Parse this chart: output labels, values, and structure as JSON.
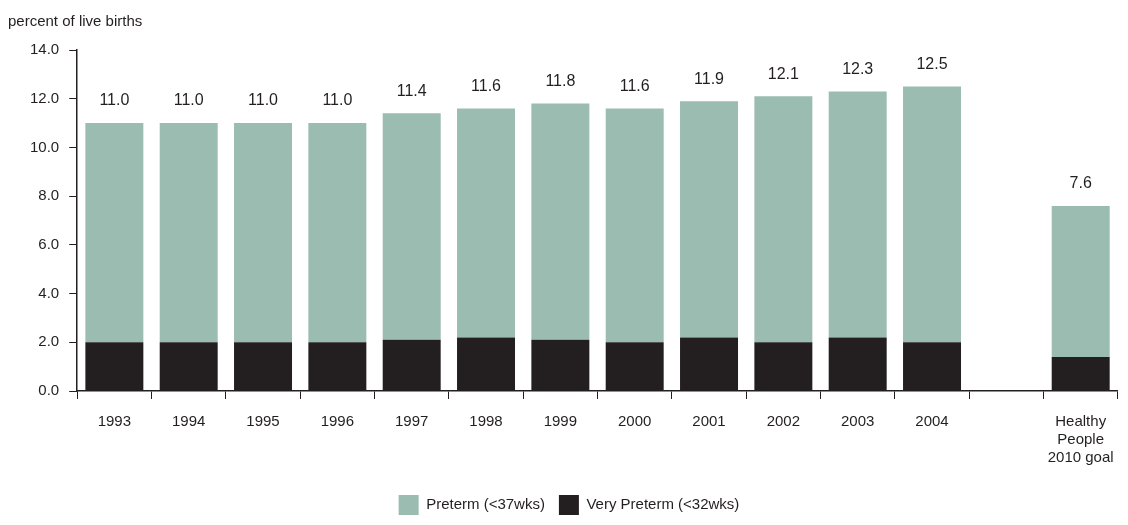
{
  "chart_data": {
    "type": "bar",
    "stacked": true,
    "ylabel": "percent of live births",
    "categories": [
      "1993",
      "1994",
      "1995",
      "1996",
      "1997",
      "1998",
      "1999",
      "2000",
      "2001",
      "2002",
      "2003",
      "2004",
      null,
      "Healthy People 2010 goal"
    ],
    "series": [
      {
        "name": "Very Preterm (<32wks)",
        "color": "#231f20",
        "values": [
          2.0,
          2.0,
          2.0,
          2.0,
          2.1,
          2.2,
          2.1,
          2.0,
          2.2,
          2.0,
          2.2,
          2.0,
          null,
          1.4
        ]
      },
      {
        "name": "Preterm (<37wks)",
        "color": "#9bbcb1",
        "values": [
          9.0,
          9.0,
          9.0,
          9.0,
          9.3,
          9.4,
          9.7,
          9.6,
          9.7,
          10.1,
          10.1,
          10.5,
          null,
          6.2
        ]
      }
    ],
    "totals": [
      "11.0",
      "11.0",
      "11.0",
      "11.0",
      "11.4",
      "11.6",
      "11.8",
      "11.6",
      "11.9",
      "12.1",
      "12.3",
      "12.5",
      null,
      "7.6"
    ],
    "ylim": [
      0,
      14
    ],
    "yticks": [
      {
        "value": 0,
        "label": "0.0"
      },
      {
        "value": 2,
        "label": "2.0"
      },
      {
        "value": 4,
        "label": "4.0"
      },
      {
        "value": 6,
        "label": "6.0"
      },
      {
        "value": 8,
        "label": "8.0"
      },
      {
        "value": 10,
        "label": "10.0"
      },
      {
        "value": 12,
        "label": "12.0"
      },
      {
        "value": 14,
        "label": "14.0"
      }
    ],
    "grid": false,
    "legend": "bottom"
  }
}
